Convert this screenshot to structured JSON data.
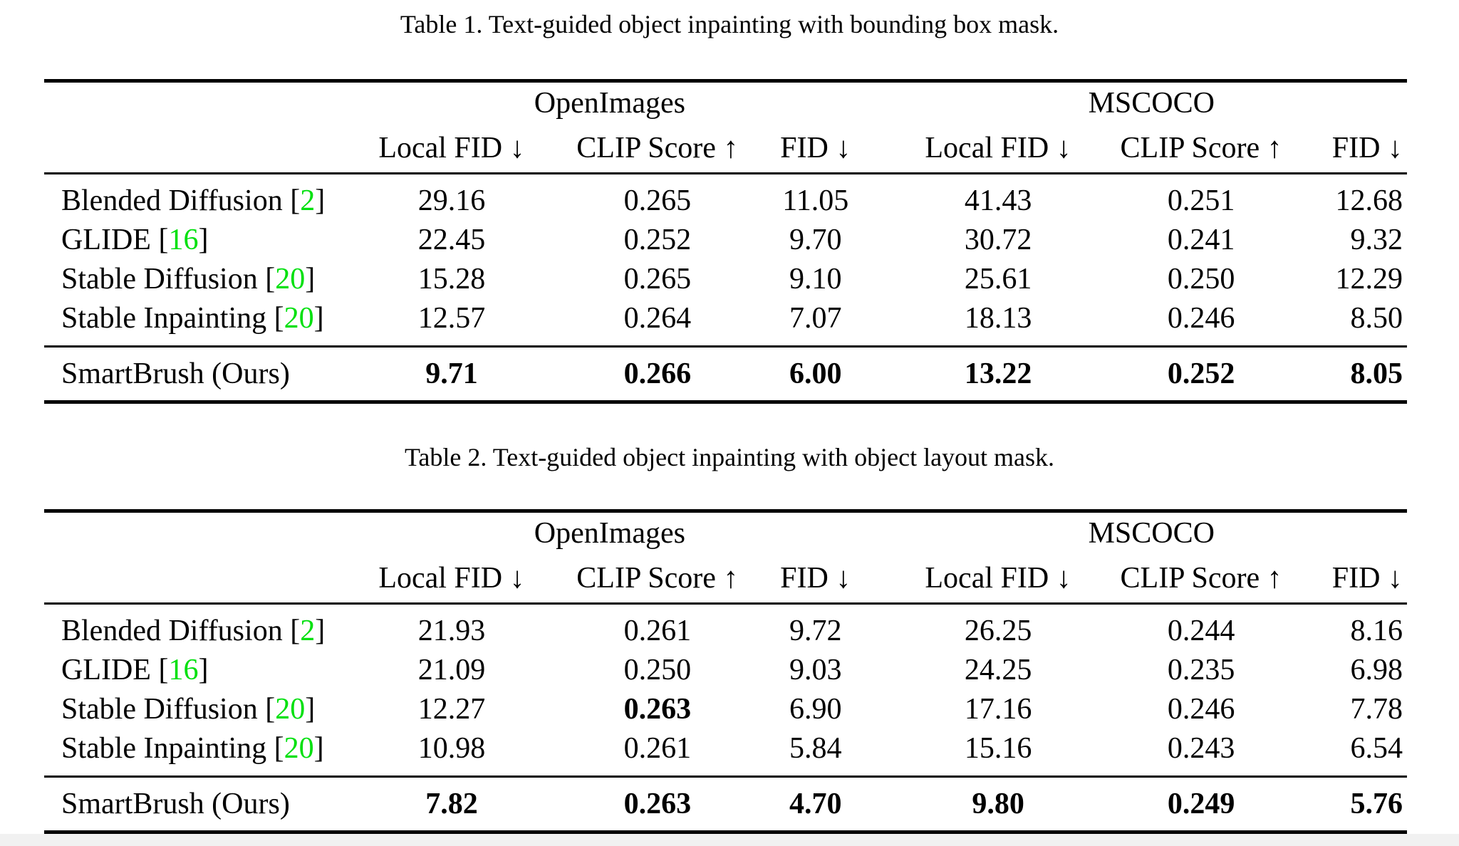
{
  "colors": {
    "citation_green": "#00e00e",
    "rule_black": "#000000",
    "page_background": "#ffffff"
  },
  "tables": [
    {
      "caption": "Table 1. Text-guided object inpainting with bounding box mask.",
      "group_headers": [
        "OpenImages",
        "MSCOCO"
      ],
      "column_headers": [
        "Local FID ↓",
        "CLIP Score ↑",
        "FID ↓",
        "Local FID ↓",
        "CLIP Score ↑",
        "FID ↓"
      ],
      "rows": [
        {
          "method": "Blended Diffusion",
          "citation": "2",
          "values": [
            "29.16",
            "0.265",
            "11.05",
            "41.43",
            "0.251",
            "12.68"
          ],
          "bold": [
            false,
            false,
            false,
            false,
            false,
            false
          ]
        },
        {
          "method": "GLIDE",
          "citation": "16",
          "values": [
            "22.45",
            "0.252",
            "9.70",
            "30.72",
            "0.241",
            "9.32"
          ],
          "bold": [
            false,
            false,
            false,
            false,
            false,
            false
          ]
        },
        {
          "method": "Stable Diffusion",
          "citation": "20",
          "values": [
            "15.28",
            "0.265",
            "9.10",
            "25.61",
            "0.250",
            "12.29"
          ],
          "bold": [
            false,
            false,
            false,
            false,
            false,
            false
          ]
        },
        {
          "method": "Stable Inpainting",
          "citation": "20",
          "values": [
            "12.57",
            "0.264",
            "7.07",
            "18.13",
            "0.246",
            "8.50"
          ],
          "bold": [
            false,
            false,
            false,
            false,
            false,
            false
          ]
        }
      ],
      "ours_row": {
        "method": "SmartBrush (Ours)",
        "values": [
          "9.71",
          "0.266",
          "6.00",
          "13.22",
          "0.252",
          "8.05"
        ],
        "bold": [
          true,
          true,
          true,
          true,
          true,
          true
        ]
      }
    },
    {
      "caption": "Table 2. Text-guided object inpainting with object layout mask.",
      "group_headers": [
        "OpenImages",
        "MSCOCO"
      ],
      "column_headers": [
        "Local FID ↓",
        "CLIP Score ↑",
        "FID ↓",
        "Local FID ↓",
        "CLIP Score ↑",
        "FID ↓"
      ],
      "rows": [
        {
          "method": "Blended Diffusion",
          "citation": "2",
          "values": [
            "21.93",
            "0.261",
            "9.72",
            "26.25",
            "0.244",
            "8.16"
          ],
          "bold": [
            false,
            false,
            false,
            false,
            false,
            false
          ]
        },
        {
          "method": "GLIDE",
          "citation": "16",
          "values": [
            "21.09",
            "0.250",
            "9.03",
            "24.25",
            "0.235",
            "6.98"
          ],
          "bold": [
            false,
            false,
            false,
            false,
            false,
            false
          ]
        },
        {
          "method": "Stable Diffusion",
          "citation": "20",
          "values": [
            "12.27",
            "0.263",
            "6.90",
            "17.16",
            "0.246",
            "7.78"
          ],
          "bold": [
            false,
            true,
            false,
            false,
            false,
            false
          ]
        },
        {
          "method": "Stable Inpainting",
          "citation": "20",
          "values": [
            "10.98",
            "0.261",
            "5.84",
            "15.16",
            "0.243",
            "6.54"
          ],
          "bold": [
            false,
            false,
            false,
            false,
            false,
            false
          ]
        }
      ],
      "ours_row": {
        "method": "SmartBrush (Ours)",
        "values": [
          "7.82",
          "0.263",
          "4.70",
          "9.80",
          "0.249",
          "5.76"
        ],
        "bold": [
          true,
          true,
          true,
          true,
          true,
          true
        ]
      }
    }
  ]
}
